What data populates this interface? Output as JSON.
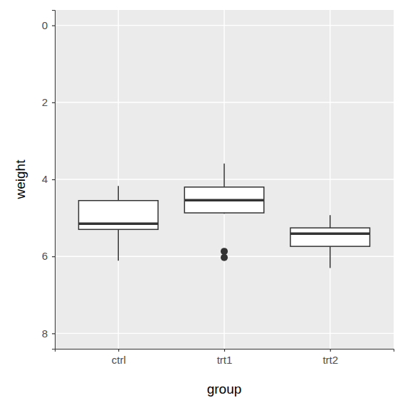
{
  "chart_data": {
    "type": "box",
    "x_label": "group",
    "y_label": "weight",
    "categories": [
      "ctrl",
      "trt1",
      "trt2"
    ],
    "min": [
      4.17,
      3.59,
      4.93
    ],
    "q1": [
      4.55,
      4.2,
      5.26
    ],
    "median": [
      5.15,
      4.54,
      5.41
    ],
    "q3": [
      5.3,
      4.87,
      5.74
    ],
    "max": [
      6.11,
      4.89,
      6.3
    ],
    "outliers": [
      [],
      [
        5.87,
        6.03
      ],
      []
    ],
    "ylim": [
      8.4,
      -0.4
    ],
    "yticks": [
      0,
      2,
      4,
      6,
      8
    ],
    "grid": true
  }
}
